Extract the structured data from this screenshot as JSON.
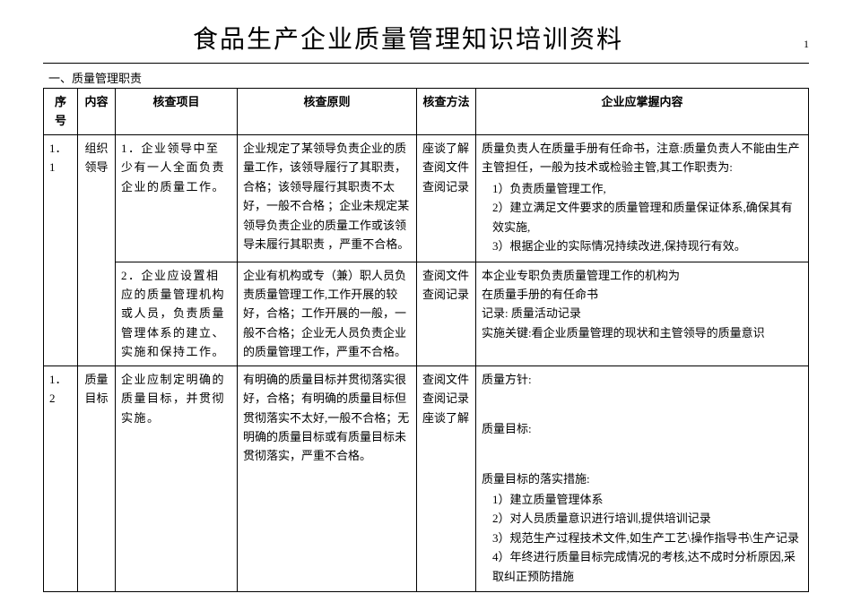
{
  "title": "食品生产企业质量管理知识培训资料",
  "page_number": "1",
  "section_header": "一、质量管理职责",
  "columns": {
    "seq": "序号",
    "content": "内容",
    "item": "核查项目",
    "principle": "核查原则",
    "method": "核查方法",
    "enterprise": "企业应掌握内容"
  },
  "rows": [
    {
      "seq": "1．1",
      "content": "组织领导",
      "item": "1．企业领导中至少有一人全面负责企业的质量工作。",
      "principle": "企业规定了某领导负责企业的质量工作，该领导履行了其职责，合格；该领导履行其职责不太好，一般不合格 ；企业未规定某领导负责企业的质量工作或该领导未履行其职责 ，严重不合格。",
      "method": "座谈了解\n查阅文件\n查阅记录",
      "enterprise_intro": "质量负责人在质量手册有任命书，注意:质量负责人不能由生产主管担任，一般为技术或检验主管,其工作职责为:",
      "enterprise_list": [
        "负责质量管理工作,",
        "建立满足文件要求的质量管理和质量保证体系,确保其有效实施,",
        "根据企业的实际情况持续改进,保持现行有效。"
      ]
    },
    {
      "seq": "",
      "content": "",
      "item": "2．企业应设置相应的质量管理机构或人员，负责质量管理体系的建立、实施和保持工作。",
      "principle": "企业有机构或专（兼）职人员负责质量管理工作,工作开展的较好，合格；工作开展的一般，一般不合格；企业无人员负责企业的质量管理工作，严重不合格。",
      "method": "查阅文件\n查阅记录",
      "enterprise_lines": [
        "    本企业专职负责质量管理工作的机构为",
        "  在质量手册的有任命书",
        "记录: 质量活动记录",
        "实施关键:看企业质量管理的现状和主管领导的质量意识"
      ]
    },
    {
      "seq": "1．2",
      "content": "质量目标",
      "item": "企业应制定明确的质量目标，并贯彻实施。",
      "principle": "有明确的质量目标并贯彻落实很好，合格；有明确的质量目标但贯彻落实不太好,一般不合格；无明确的质量目标或有质量目标未贯彻落实，严重不合格。",
      "method": "查阅文件\n查阅记录\n座谈了解",
      "enterprise_label1": "质量方针:",
      "enterprise_label2": "质量目标:",
      "enterprise_label3": "质量目标的落实措施:",
      "enterprise_list": [
        "建立质量管理体系",
        "对人员质量意识进行培训,提供培训记录",
        "规范生产过程技术文件,如生产工艺\\操作指导书\\生产记录",
        "年终进行质量目标完成情况的考核,达不成时分析原因,采取纠正预防措施"
      ]
    }
  ]
}
